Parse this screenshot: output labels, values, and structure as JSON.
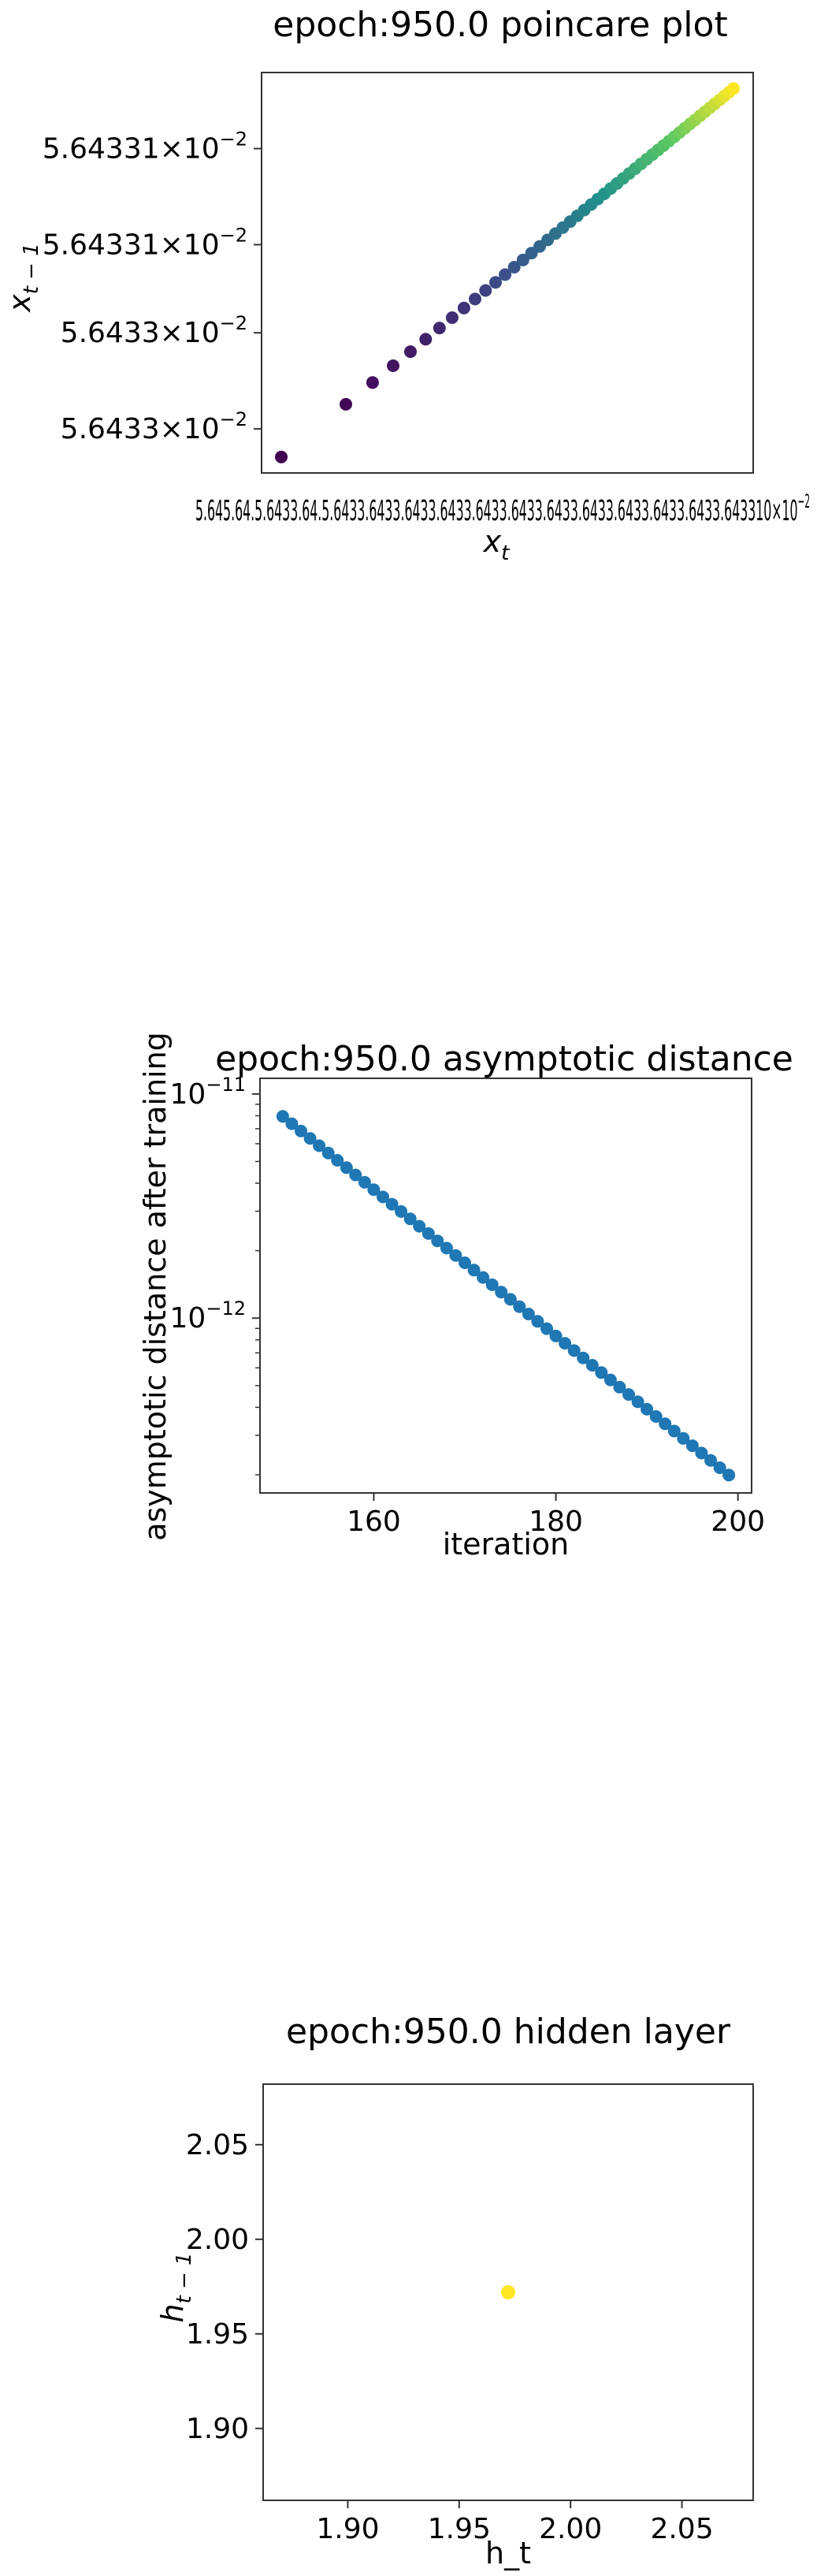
{
  "chart_data": [
    {
      "type": "scatter",
      "title": "epoch:950.0 poincare plot",
      "xlabel": "x",
      "xlabel_sub": "t",
      "ylabel": "x",
      "ylabel_sub": "t − 1",
      "scale": "log",
      "color_map": "viridis",
      "yticks": [
        {
          "mant": "5.64331",
          "exp": "−2",
          "pos": 0.19
        },
        {
          "mant": "5.64331",
          "exp": "−2",
          "pos": 0.43
        },
        {
          "mant": "5.6433",
          "exp": "−2",
          "pos": 0.65
        },
        {
          "mant": "5.6433",
          "exp": "−2",
          "pos": 0.89
        }
      ],
      "xtick_text": "5.645.64.5.6433.64.5.6433.6433.6433.6433.6433.6433.6433.6433.6433.6433.6433.643310",
      "xtick_exp": "−2",
      "n_points": 50,
      "x_range_frac": [
        0.04,
        0.96
      ],
      "y_range_frac": [
        0.04,
        0.96
      ]
    },
    {
      "type": "scatter",
      "title": "epoch:950.0 asymptotic distance",
      "xlabel": "iteration",
      "ylabel": "asymptotic distance after training",
      "yscale": "log",
      "xlim": [
        147.5,
        201.5
      ],
      "ylim_log10": [
        -12.78,
        -10.93
      ],
      "xticks": [
        160,
        180,
        200
      ],
      "yticks": [
        {
          "mant": "10",
          "exp": "−11",
          "log": -11
        },
        {
          "mant": "10",
          "exp": "−12",
          "log": -12
        }
      ],
      "color": "#1f77b4",
      "x_start": 150,
      "x_end": 199,
      "y_start_log10": -11.1,
      "y_end_log10": -12.7
    },
    {
      "type": "scatter",
      "title": "epoch:950.0 hidden layer",
      "xlabel": "h_t",
      "ylabel": "h",
      "ylabel_sub": "t − 1",
      "xlim": [
        1.862,
        2.082
      ],
      "ylim": [
        1.862,
        2.082
      ],
      "xticks": [
        "1.90",
        "1.95",
        "2.00",
        "2.05"
      ],
      "yticks": [
        "1.90",
        "1.95",
        "2.00",
        "2.05"
      ],
      "xtick_vals": [
        1.9,
        1.95,
        2.0,
        2.05
      ],
      "ytick_vals": [
        1.9,
        1.95,
        2.0,
        2.05
      ],
      "points": [
        {
          "x": 1.972,
          "y": 1.972
        }
      ],
      "color": "#fde725"
    }
  ]
}
